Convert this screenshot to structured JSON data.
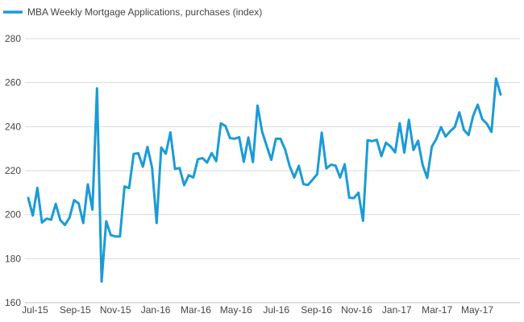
{
  "chart_data": {
    "type": "line",
    "legend": {
      "placement": "top-left"
    },
    "series": [
      {
        "name": "MBA Weekly Mortgage Applications, purchases (index)",
        "color": "#1a9bd7",
        "values": [
          207.6,
          199.6,
          212.2,
          196.4,
          198.2,
          197.7,
          204.9,
          197.5,
          195.3,
          198.6,
          206.6,
          205.1,
          196.2,
          213.8,
          202.3,
          257.4,
          169.6,
          197.0,
          190.7,
          190.1,
          190.1,
          212.8,
          212.1,
          227.6,
          227.9,
          221.8,
          230.8,
          221.4,
          196.2,
          230.5,
          227.7,
          237.4,
          220.8,
          221.2,
          213.4,
          217.9,
          216.9,
          225.2,
          225.7,
          223.7,
          228.0,
          224.3,
          241.5,
          240.3,
          234.8,
          234.5,
          235.2,
          224.0,
          235.1,
          223.9,
          249.6,
          237.7,
          231.2,
          224.9,
          234.5,
          234.5,
          229.7,
          222.1,
          216.9,
          222.2,
          213.9,
          213.5,
          215.9,
          218.4,
          237.3,
          221.0,
          222.7,
          222.3,
          216.9,
          222.9,
          207.7,
          207.5,
          210.0,
          197.2,
          233.8,
          233.4,
          234.0,
          226.6,
          232.7,
          231.0,
          228.3,
          241.6,
          228.2,
          243.1,
          229.4,
          233.6,
          222.6,
          216.7,
          230.9,
          234.5,
          239.8,
          235.5,
          237.9,
          239.8,
          246.5,
          238.5,
          236.2,
          244.8,
          250.0,
          243.4,
          241.3,
          237.6,
          261.9,
          254.6
        ]
      }
    ],
    "x_ticks": [
      "Jul-15",
      "Sep-15",
      "Nov-15",
      "Jan-16",
      "Mar-16",
      "May-16",
      "Jul-16",
      "Sep-16",
      "Nov-16",
      "Jan-17",
      "Mar-17",
      "May-17"
    ],
    "y_ticks": [
      "160",
      "180",
      "200",
      "220",
      "240",
      "260",
      "280"
    ],
    "ylim": [
      160,
      280
    ],
    "grid": "horizontal"
  }
}
